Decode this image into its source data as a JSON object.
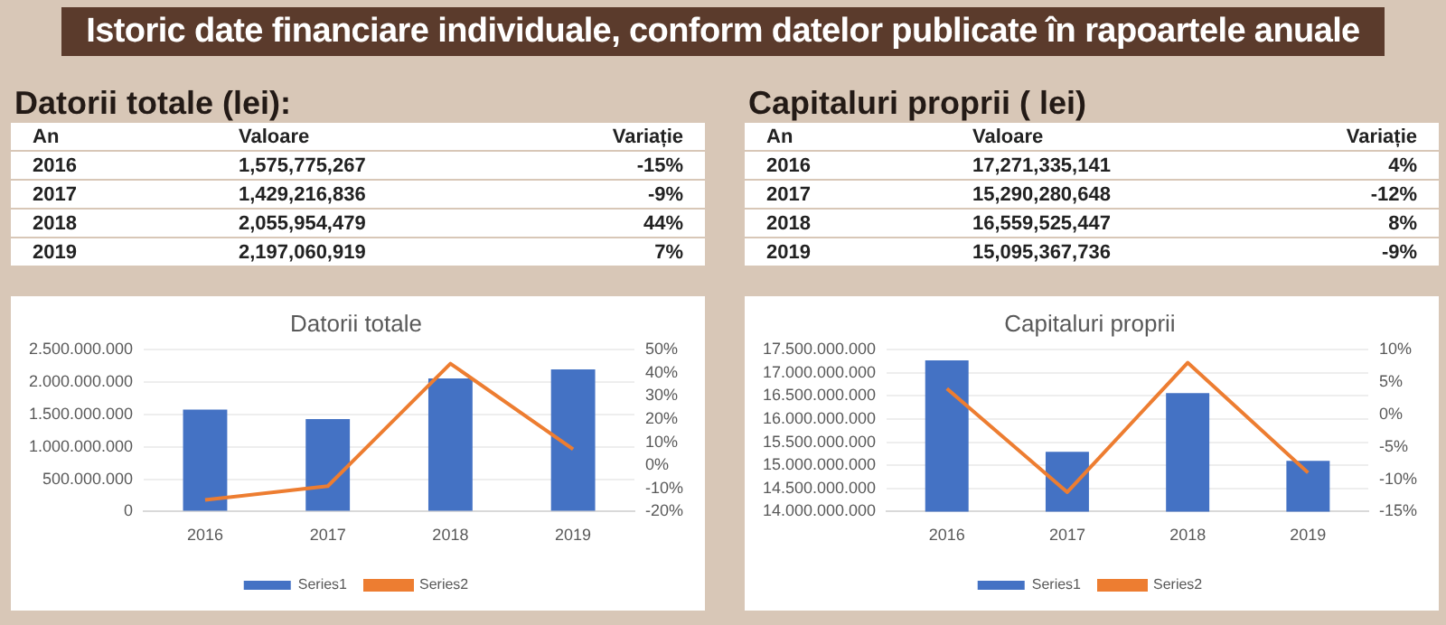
{
  "chart_data": [
    {
      "type": "bar",
      "title": "Datorii totale",
      "subtitle": "Datorii totale (lei):",
      "annotations": [
        "An",
        "Valoare",
        "Variație",
        "1,575,775,267",
        "-15%",
        "1,429,216,836",
        "-9%",
        "2,055,954,479",
        "44%",
        "2,197,060,919",
        "7%",
        "Istoric date financiare individuale, conform datelor publicate  în rapoartele anuale"
      ],
      "categories": [
        "2016",
        "2017",
        "2018",
        "2019"
      ],
      "series": [
        {
          "name": "Series1",
          "color": "#4472c4",
          "values": [
            1575775267,
            1429216836,
            2055954479,
            2197060919
          ]
        },
        {
          "name": "Series2",
          "type": "line",
          "axis": "y2",
          "color": "#ed7d31",
          "values": [
            -15,
            -9,
            44,
            7
          ]
        }
      ],
      "ylim": [
        0,
        2500000000
      ],
      "yticks": [
        {
          "value": 0,
          "label": "0"
        },
        {
          "value": 500000000,
          "label": "500.000.000"
        },
        {
          "value": 1000000000,
          "label": "1.000.000.000"
        },
        {
          "value": 1500000000,
          "label": "1.500.000.000"
        },
        {
          "value": 2000000000,
          "label": "2.000.000.000"
        },
        {
          "value": 2500000000,
          "label": "2.500.000.000"
        }
      ],
      "y2lim": [
        -20,
        50
      ],
      "y2ticks": [
        {
          "value": -20,
          "label": "-20%"
        },
        {
          "value": -10,
          "label": "-10%"
        },
        {
          "value": 0,
          "label": "0%"
        },
        {
          "value": 10,
          "label": "10%"
        },
        {
          "value": 20,
          "label": "20%"
        },
        {
          "value": 30,
          "label": "30%"
        },
        {
          "value": 40,
          "label": "40%"
        },
        {
          "value": 50,
          "label": "50%"
        }
      ],
      "grid": "y",
      "legend": "bottom",
      "marker": "none",
      "line_style": "solid"
    },
    {
      "type": "bar",
      "title": "Capitaluri proprii",
      "subtitle": "Capitaluri proprii ( lei)",
      "annotations": [
        "An",
        "Valoare",
        "Variație",
        "17,271,335,141",
        "4%",
        "15,290,280,648",
        "-12%",
        "16,559,525,447",
        "8%",
        "15,095,367,736",
        "-9%"
      ],
      "categories": [
        "2016",
        "2017",
        "2018",
        "2019"
      ],
      "series": [
        {
          "name": "Series1",
          "color": "#4472c4",
          "values": [
            17271335141,
            15290280648,
            16559525447,
            15095367736
          ]
        },
        {
          "name": "Series2",
          "type": "line",
          "axis": "y2",
          "color": "#ed7d31",
          "values": [
            4,
            -12,
            8,
            -9
          ]
        }
      ],
      "ylim": [
        14000000000,
        17500000000
      ],
      "yticks": [
        {
          "value": 14000000000,
          "label": "14.000.000.000"
        },
        {
          "value": 14500000000,
          "label": "14.500.000.000"
        },
        {
          "value": 15000000000,
          "label": "15.000.000.000"
        },
        {
          "value": 15500000000,
          "label": "15.500.000.000"
        },
        {
          "value": 16000000000,
          "label": "16.000.000.000"
        },
        {
          "value": 16500000000,
          "label": "16.500.000.000"
        },
        {
          "value": 17000000000,
          "label": "17.000.000.000"
        },
        {
          "value": 17500000000,
          "label": "17.500.000.000"
        }
      ],
      "y2lim": [
        -15,
        10
      ],
      "y2ticks": [
        {
          "value": -15,
          "label": "-15%"
        },
        {
          "value": -10,
          "label": "-10%"
        },
        {
          "value": -5,
          "label": "-5%"
        },
        {
          "value": 0,
          "label": "0%"
        },
        {
          "value": 5,
          "label": "5%"
        },
        {
          "value": 10,
          "label": "10%"
        }
      ],
      "grid": "y",
      "legend": "bottom",
      "marker": "none",
      "line_style": "solid"
    }
  ]
}
